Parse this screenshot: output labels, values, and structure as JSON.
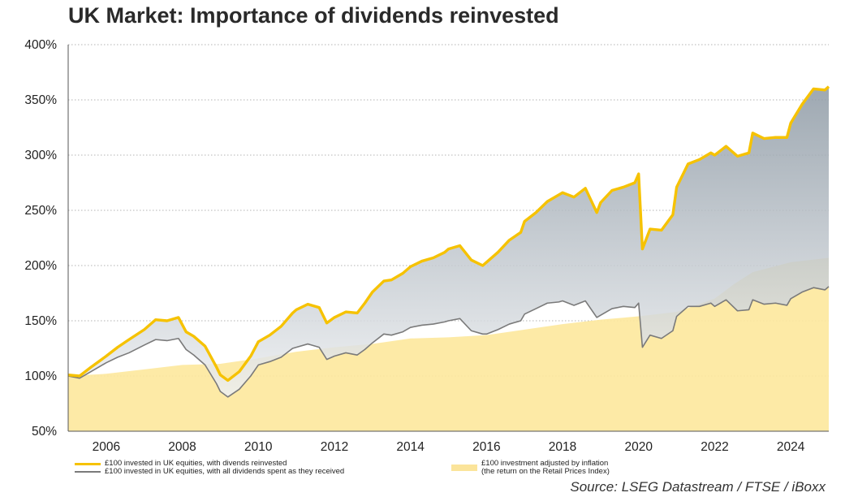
{
  "chart_data": {
    "type": "line",
    "title": "UK Market: Importance of dividends reinvested",
    "xlabel": "",
    "ylabel": "",
    "ylim": [
      50,
      400
    ],
    "yticks": [
      "400%",
      "350%",
      "300%",
      "250%",
      "200%",
      "150%",
      "100%",
      "50%"
    ],
    "ytick_values": [
      400,
      350,
      300,
      250,
      200,
      150,
      100,
      50
    ],
    "xlim": [
      2005.0,
      2025.0
    ],
    "xticks": [
      "2006",
      "2008",
      "2010",
      "2012",
      "2014",
      "2016",
      "2018",
      "2020",
      "2022",
      "2024"
    ],
    "xtick_values": [
      2006,
      2008,
      2010,
      2012,
      2014,
      2016,
      2018,
      2020,
      2022,
      2024
    ],
    "grid": "horizontal dotted",
    "series": [
      {
        "name": "£100 invested in UK equities, with divends reinvested",
        "color": "#f6c200",
        "x": [
          2005.0,
          2005.3,
          2005.6,
          2006.0,
          2006.3,
          2006.6,
          2007.0,
          2007.3,
          2007.6,
          2007.9,
          2008.1,
          2008.3,
          2008.6,
          2008.9,
          2009.0,
          2009.2,
          2009.5,
          2009.8,
          2010.0,
          2010.3,
          2010.6,
          2010.9,
          2011.0,
          2011.3,
          2011.6,
          2011.8,
          2012.0,
          2012.3,
          2012.6,
          2012.8,
          2013.0,
          2013.3,
          2013.5,
          2013.8,
          2014.0,
          2014.3,
          2014.6,
          2014.9,
          2015.0,
          2015.3,
          2015.6,
          2015.9,
          2016.0,
          2016.3,
          2016.6,
          2016.9,
          2017.0,
          2017.3,
          2017.6,
          2017.9,
          2018.0,
          2018.3,
          2018.6,
          2018.9,
          2019.0,
          2019.3,
          2019.6,
          2019.9,
          2020.0,
          2020.1,
          2020.3,
          2020.6,
          2020.9,
          2021.0,
          2021.3,
          2021.6,
          2021.9,
          2022.0,
          2022.3,
          2022.6,
          2022.9,
          2023.0,
          2023.3,
          2023.6,
          2023.9,
          2024.0,
          2024.3,
          2024.6,
          2024.9,
          2025.0
        ],
        "values": [
          101,
          100,
          108,
          118,
          126,
          133,
          142,
          151,
          150,
          153,
          140,
          136,
          127,
          108,
          101,
          96,
          104,
          118,
          131,
          137,
          145,
          157,
          160,
          165,
          162,
          148,
          153,
          158,
          157,
          166,
          176,
          186,
          187,
          193,
          199,
          204,
          207,
          212,
          215,
          218,
          205,
          200,
          203,
          212,
          223,
          230,
          240,
          248,
          258,
          264,
          266,
          262,
          270,
          248,
          257,
          268,
          271,
          275,
          283,
          215,
          233,
          232,
          246,
          271,
          292,
          296,
          302,
          300,
          308,
          299,
          302,
          320,
          315,
          316,
          316,
          329,
          346,
          360,
          359,
          362
        ]
      },
      {
        "name": "£100 invested in UK equities, with all dividends spent as they received",
        "color": "#7a7a7a",
        "x": [
          2005.0,
          2005.3,
          2005.6,
          2006.0,
          2006.3,
          2006.6,
          2007.0,
          2007.3,
          2007.6,
          2007.9,
          2008.1,
          2008.3,
          2008.6,
          2008.9,
          2009.0,
          2009.2,
          2009.5,
          2009.8,
          2010.0,
          2010.3,
          2010.6,
          2010.9,
          2011.0,
          2011.3,
          2011.6,
          2011.8,
          2012.0,
          2012.3,
          2012.6,
          2012.8,
          2013.0,
          2013.3,
          2013.5,
          2013.8,
          2014.0,
          2014.3,
          2014.6,
          2014.9,
          2015.0,
          2015.3,
          2015.6,
          2015.9,
          2016.0,
          2016.3,
          2016.6,
          2016.9,
          2017.0,
          2017.3,
          2017.6,
          2017.9,
          2018.0,
          2018.3,
          2018.6,
          2018.9,
          2019.0,
          2019.3,
          2019.6,
          2019.9,
          2020.0,
          2020.1,
          2020.3,
          2020.6,
          2020.9,
          2021.0,
          2021.3,
          2021.6,
          2021.9,
          2022.0,
          2022.3,
          2022.6,
          2022.9,
          2023.0,
          2023.3,
          2023.6,
          2023.9,
          2024.0,
          2024.3,
          2024.6,
          2024.9,
          2025.0
        ],
        "values": [
          100,
          98,
          104,
          112,
          117,
          121,
          128,
          133,
          132,
          134,
          124,
          119,
          110,
          93,
          86,
          81,
          88,
          100,
          110,
          113,
          117,
          125,
          126,
          129,
          126,
          115,
          118,
          121,
          119,
          124,
          130,
          138,
          137,
          140,
          144,
          146,
          147,
          149,
          150,
          152,
          141,
          138,
          138,
          142,
          147,
          150,
          156,
          161,
          166,
          167,
          168,
          164,
          168,
          153,
          155,
          161,
          163,
          162,
          166,
          126,
          137,
          134,
          141,
          154,
          163,
          163,
          166,
          163,
          169,
          159,
          160,
          169,
          165,
          166,
          164,
          170,
          176,
          180,
          178,
          181
        ]
      },
      {
        "name": "£100 investment adjusted by inflation (the return on the Retail Prices Index)",
        "color": "#fbe49a",
        "x": [
          2005,
          2006,
          2007,
          2008,
          2009,
          2010,
          2011,
          2012,
          2013,
          2014,
          2015,
          2016,
          2017,
          2018,
          2019,
          2020,
          2021,
          2022,
          2022.5,
          2023,
          2024,
          2025
        ],
        "values": [
          100,
          102,
          106,
          110,
          111,
          116,
          122,
          126,
          129,
          134,
          135,
          137,
          142,
          147,
          151,
          154,
          158,
          170,
          183,
          194,
          203,
          207
        ]
      }
    ]
  },
  "legend": {
    "item1": "£100 invested in UK equities, with divends reinvested",
    "item2": "£100 invested in UK equities, with all dividends spent as they received",
    "item3_line1": "£100 investment adjusted by inflation",
    "item3_line2": "(the return on the Retail Prices Index)"
  },
  "source": "Source: LSEG Datastream / FTSE / iBoxx"
}
